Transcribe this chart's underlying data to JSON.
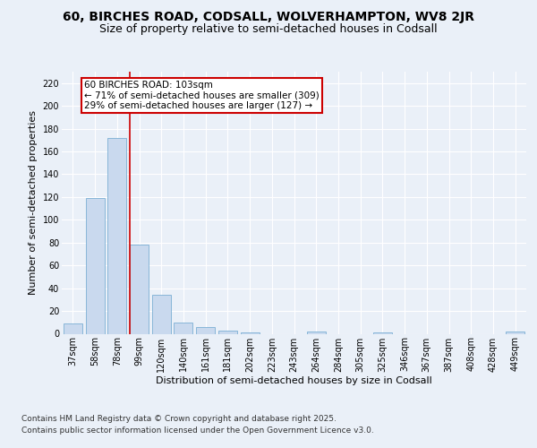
{
  "title_line1": "60, BIRCHES ROAD, CODSALL, WOLVERHAMPTON, WV8 2JR",
  "title_line2": "Size of property relative to semi-detached houses in Codsall",
  "xlabel": "Distribution of semi-detached houses by size in Codsall",
  "ylabel": "Number of semi-detached properties",
  "categories": [
    "37sqm",
    "58sqm",
    "78sqm",
    "99sqm",
    "120sqm",
    "140sqm",
    "161sqm",
    "181sqm",
    "202sqm",
    "223sqm",
    "243sqm",
    "264sqm",
    "284sqm",
    "305sqm",
    "325sqm",
    "346sqm",
    "367sqm",
    "387sqm",
    "408sqm",
    "428sqm",
    "449sqm"
  ],
  "values": [
    9,
    119,
    172,
    78,
    34,
    10,
    6,
    3,
    1,
    0,
    0,
    2,
    0,
    0,
    1,
    0,
    0,
    0,
    0,
    0,
    2
  ],
  "bar_color": "#c9d9ee",
  "bar_edge_color": "#7bafd4",
  "vline_index": 3,
  "vline_color": "#cc0000",
  "annotation_title": "60 BIRCHES ROAD: 103sqm",
  "annotation_line1": "← 71% of semi-detached houses are smaller (309)",
  "annotation_line2": "29% of semi-detached houses are larger (127) →",
  "annotation_box_color": "#cc0000",
  "ylim": [
    0,
    230
  ],
  "yticks": [
    0,
    20,
    40,
    60,
    80,
    100,
    120,
    140,
    160,
    180,
    200,
    220
  ],
  "footnote_line1": "Contains HM Land Registry data © Crown copyright and database right 2025.",
  "footnote_line2": "Contains public sector information licensed under the Open Government Licence v3.0.",
  "background_color": "#eaf0f8",
  "plot_bg_color": "#eaf0f8",
  "title_fontsize": 10,
  "subtitle_fontsize": 9,
  "axis_label_fontsize": 8,
  "tick_fontsize": 7,
  "annotation_fontsize": 7.5,
  "footnote_fontsize": 6.5
}
